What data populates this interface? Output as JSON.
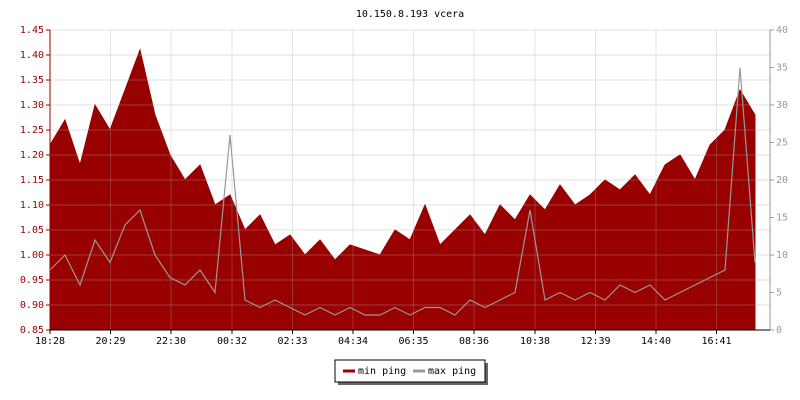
{
  "chart_data": {
    "type": "line",
    "title": "10.150.8.193 vcera",
    "x": [
      "18:28",
      "18:58",
      "19:28",
      "19:58",
      "20:28",
      "20:58",
      "21:28",
      "21:58",
      "22:28",
      "22:58",
      "23:28",
      "23:58",
      "00:28",
      "00:58",
      "01:28",
      "01:58",
      "02:28",
      "02:58",
      "03:28",
      "03:58",
      "04:28",
      "04:58",
      "05:28",
      "05:58",
      "06:28",
      "06:58",
      "07:28",
      "07:58",
      "08:28",
      "08:58",
      "09:28",
      "09:58",
      "10:28",
      "10:58",
      "11:28",
      "11:58",
      "12:28",
      "12:58",
      "13:28",
      "13:58",
      "14:28",
      "14:58",
      "15:28",
      "15:58",
      "16:28",
      "16:58",
      "17:28",
      "17:58"
    ],
    "xlim": [
      "18:28",
      "18:28"
    ],
    "xticks": [
      "18:28",
      "20:29",
      "22:30",
      "00:32",
      "02:33",
      "04:34",
      "06:35",
      "08:36",
      "10:38",
      "12:39",
      "14:40",
      "16:41"
    ],
    "series": [
      {
        "name": "min ping",
        "color": "#990000",
        "fill": true,
        "values": [
          1.22,
          1.27,
          1.18,
          1.3,
          1.25,
          1.33,
          1.41,
          1.28,
          1.2,
          1.15,
          1.18,
          1.1,
          1.12,
          1.05,
          1.08,
          1.02,
          1.04,
          1.0,
          1.03,
          0.99,
          1.02,
          1.01,
          1.0,
          1.05,
          1.03,
          1.1,
          1.02,
          1.05,
          1.08,
          1.04,
          1.1,
          1.07,
          1.12,
          1.09,
          1.14,
          1.1,
          1.12,
          1.15,
          1.13,
          1.16,
          1.12,
          1.18,
          1.2,
          1.15,
          1.22,
          1.25,
          1.33,
          1.28
        ]
      },
      {
        "name": "max ping",
        "color": "#999999",
        "axis": "y2",
        "values": [
          8,
          10,
          6,
          12,
          9,
          14,
          16,
          10,
          7,
          6,
          8,
          5,
          26,
          4,
          3,
          4,
          3,
          2,
          3,
          2,
          3,
          2,
          2,
          3,
          2,
          3,
          3,
          2,
          4,
          3,
          4,
          5,
          16,
          4,
          5,
          4,
          5,
          4,
          6,
          5,
          6,
          4,
          5,
          6,
          7,
          8,
          35,
          9
        ]
      }
    ],
    "ylim": [
      0.85,
      1.45
    ],
    "yticks": [
      0.85,
      {
        "value": 0.9,
        "label": "0.90"
      },
      0.95,
      {
        "value": 1,
        "label": "1.00"
      },
      1.05,
      {
        "value": 1.1,
        "label": "1.10"
      },
      1.15,
      {
        "value": 1.2,
        "label": "1.20"
      },
      1.25,
      {
        "value": 1.3,
        "label": "1.30"
      },
      1.35,
      {
        "value": 1.4,
        "label": "1.40"
      },
      1.45
    ],
    "y2lim": [
      0,
      40
    ],
    "y2ticks": [
      0,
      5,
      10,
      15,
      20,
      25,
      30,
      35,
      40
    ],
    "grid": true,
    "legend": "bottom"
  }
}
